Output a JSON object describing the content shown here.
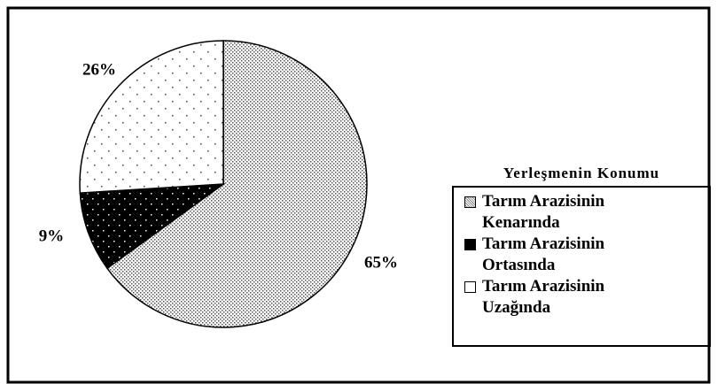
{
  "chart_data": {
    "type": "pie",
    "categories": [
      "Tarım Arazisinin Kenarında",
      "Tarım Arazisinin Ortasında",
      "Tarım Arazisinin Uzağında"
    ],
    "values": [
      65,
      9,
      26
    ],
    "value_labels": [
      "65%",
      "9%",
      "26%"
    ],
    "legend_title": "Yerleşmenin Konumu",
    "legend": "right"
  }
}
